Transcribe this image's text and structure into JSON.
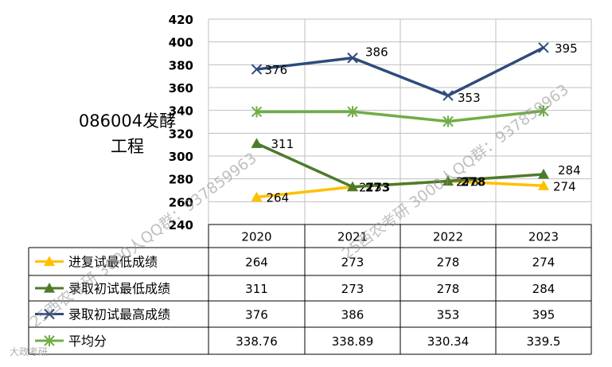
{
  "chart_data": {
    "type": "line",
    "title": "086004发酵\n工程",
    "categories": [
      "2020",
      "2021",
      "2022",
      "2023"
    ],
    "ylim": [
      240,
      420
    ],
    "yticks": [
      240,
      260,
      280,
      300,
      320,
      340,
      360,
      380,
      400,
      420
    ],
    "grid": true,
    "legend": "data-table-left",
    "series": [
      {
        "name": "进复试最低成绩",
        "values": [
          264,
          273,
          278,
          274
        ],
        "table_values": [
          "264",
          "273",
          "278",
          "274"
        ],
        "point_labels": [
          "264",
          "273",
          "278",
          "274"
        ],
        "color": "#FFC000",
        "marker": "triangle"
      },
      {
        "name": "录取初试最低成绩",
        "values": [
          311,
          273,
          278,
          284
        ],
        "table_values": [
          "311",
          "273",
          "278",
          "284"
        ],
        "point_labels": [
          "311",
          "273",
          "278",
          "284"
        ],
        "color": "#4E7A2C",
        "marker": "triangle"
      },
      {
        "name": "录取初试最高成绩",
        "values": [
          376,
          386,
          353,
          395
        ],
        "table_values": [
          "376",
          "386",
          "353",
          "395"
        ],
        "point_labels": [
          "376",
          "386",
          "353",
          "395"
        ],
        "color": "#2F4B7C",
        "marker": "x"
      },
      {
        "name": "平均分",
        "values": [
          338.76,
          338.89,
          330.34,
          339.5
        ],
        "table_values": [
          "338.76",
          "338.89",
          "330.34",
          "339.5"
        ],
        "point_labels": [],
        "color": "#70AD47",
        "marker": "star"
      }
    ]
  },
  "watermark": {
    "text": "25西农考研 3000人QQ群：937859963",
    "corner_logo": "大政考研"
  },
  "colors": {
    "grid": "#BFBFBF",
    "border": "#000000"
  }
}
